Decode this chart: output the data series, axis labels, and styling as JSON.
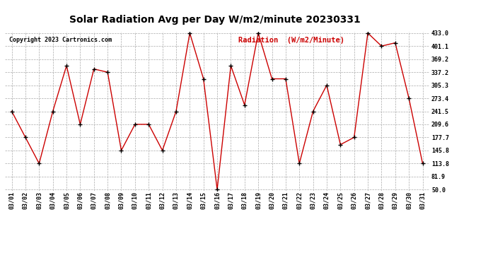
{
  "title": "Solar Radiation Avg per Day W/m2/minute 20230331",
  "copyright": "Copyright 2023 Cartronics.com",
  "legend_label": "Radiation  (W/m2/Minute)",
  "dates": [
    "03/01",
    "03/02",
    "03/03",
    "03/04",
    "03/05",
    "03/06",
    "03/07",
    "03/08",
    "03/09",
    "03/10",
    "03/11",
    "03/12",
    "03/13",
    "03/14",
    "03/15",
    "03/16",
    "03/17",
    "03/18",
    "03/19",
    "03/20",
    "03/21",
    "03/22",
    "03/23",
    "03/24",
    "03/25",
    "03/26",
    "03/27",
    "03/28",
    "03/29",
    "03/30",
    "03/31"
  ],
  "values": [
    241.5,
    177.7,
    113.8,
    241.5,
    353.0,
    209.6,
    345.0,
    337.2,
    145.8,
    209.6,
    209.6,
    145.8,
    241.5,
    433.0,
    321.0,
    50.0,
    353.0,
    257.0,
    433.0,
    321.0,
    321.0,
    113.8,
    241.5,
    305.3,
    160.0,
    177.7,
    433.0,
    401.1,
    409.0,
    273.4,
    113.8
  ],
  "y_ticks": [
    50.0,
    81.9,
    113.8,
    145.8,
    177.7,
    209.6,
    241.5,
    273.4,
    305.3,
    337.2,
    369.2,
    401.1,
    433.0
  ],
  "ylim_min": 50.0,
  "ylim_max": 433.0,
  "line_color": "#cc0000",
  "marker_color": "#000000",
  "background_color": "#ffffff",
  "grid_color": "#aaaaaa",
  "title_color": "#000000",
  "copyright_color": "#000000",
  "legend_color": "#cc0000",
  "title_fontsize": 10,
  "tick_fontsize": 6,
  "copyright_fontsize": 6,
  "legend_fontsize": 7.5
}
